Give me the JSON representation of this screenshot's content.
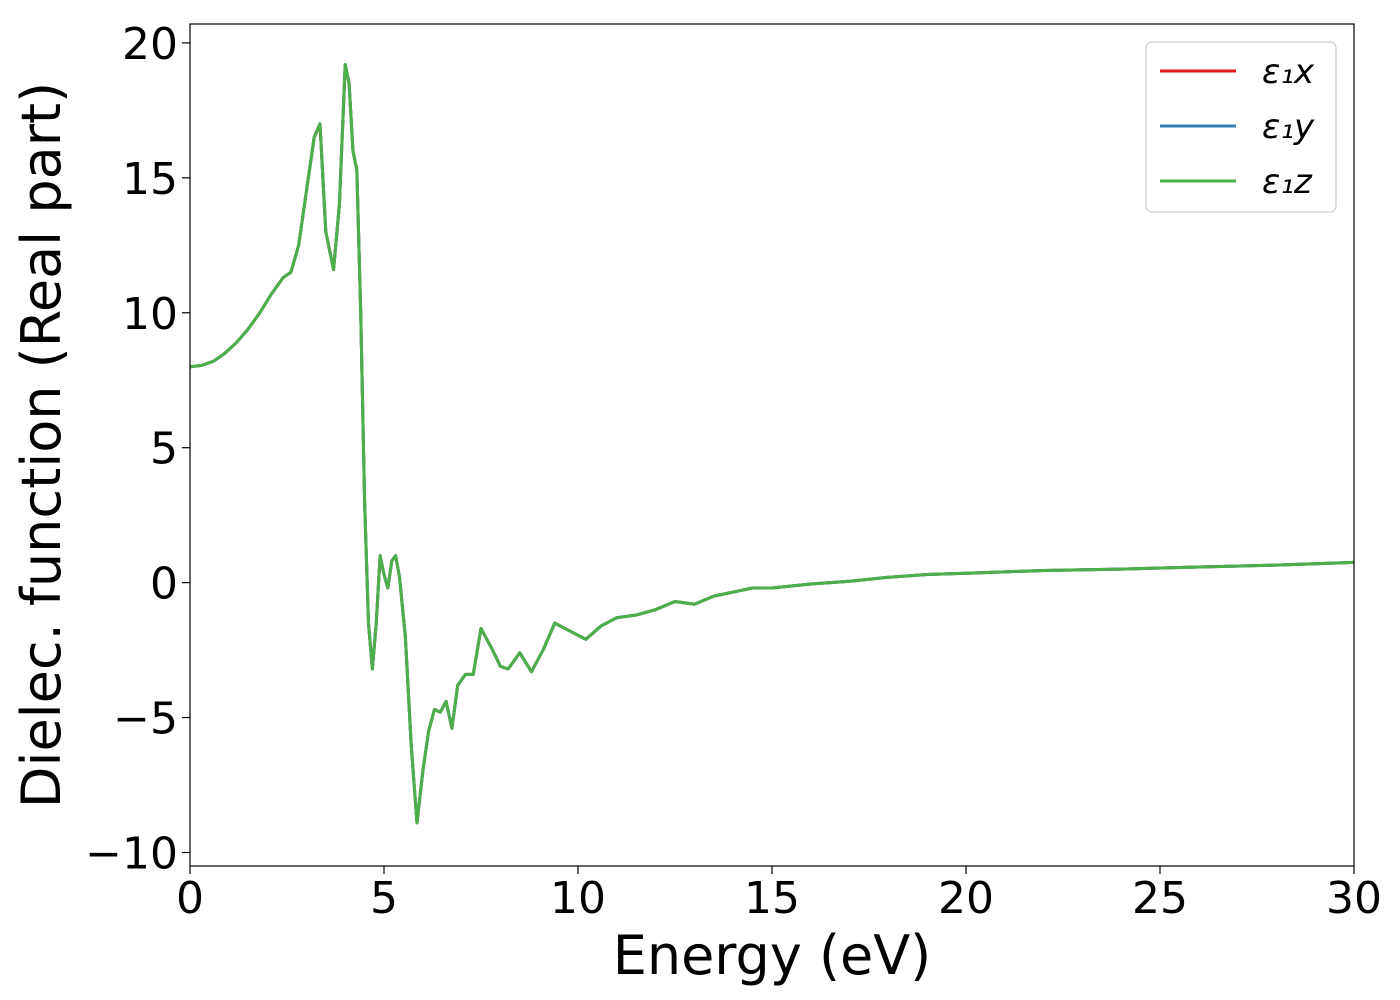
{
  "chart_data": {
    "type": "line",
    "xlabel": "Energy (eV)",
    "ylabel": "Dielec. function (Real part)",
    "xlim": [
      0,
      30
    ],
    "ylim": [
      -10.5,
      20.7
    ],
    "xticks": [
      0,
      5,
      10,
      15,
      20,
      25,
      30
    ],
    "xtick_labels": [
      "0",
      "5",
      "10",
      "15",
      "20",
      "25",
      "30"
    ],
    "yticks": [
      -10,
      -5,
      0,
      5,
      10,
      15,
      20
    ],
    "ytick_labels": [
      "−10",
      "−5",
      "0",
      "5",
      "10",
      "15",
      "20"
    ],
    "grid": false,
    "legend_position": "top-right",
    "x": [
      0,
      0.3,
      0.6,
      0.9,
      1.2,
      1.5,
      1.8,
      2.1,
      2.4,
      2.6,
      2.8,
      3.0,
      3.2,
      3.35,
      3.5,
      3.7,
      3.85,
      4.0,
      4.1,
      4.2,
      4.3,
      4.4,
      4.5,
      4.6,
      4.7,
      4.8,
      4.9,
      5.0,
      5.1,
      5.2,
      5.3,
      5.4,
      5.55,
      5.7,
      5.85,
      6.0,
      6.15,
      6.3,
      6.45,
      6.6,
      6.75,
      6.9,
      7.1,
      7.3,
      7.5,
      7.8,
      8.0,
      8.2,
      8.5,
      8.8,
      9.1,
      9.4,
      9.8,
      10.2,
      10.6,
      11.0,
      11.5,
      12.0,
      12.5,
      13.0,
      13.5,
      14.0,
      14.5,
      15.0,
      16.0,
      17.0,
      18.0,
      19.0,
      20.0,
      21.0,
      22.0,
      24.0,
      26.0,
      28.0,
      30.0
    ],
    "series": [
      {
        "name": "ε₁x",
        "color": "#e41a1c",
        "values": [
          8.0,
          8.05,
          8.2,
          8.5,
          8.9,
          9.4,
          10.0,
          10.7,
          11.3,
          11.5,
          12.5,
          14.5,
          16.5,
          17.0,
          13.0,
          11.6,
          14.0,
          19.2,
          18.5,
          16.0,
          15.3,
          10.0,
          3.0,
          -1.5,
          -3.2,
          -1.5,
          1.0,
          0.3,
          -0.2,
          0.8,
          1.0,
          0.2,
          -2.0,
          -6.0,
          -8.9,
          -7.0,
          -5.5,
          -4.7,
          -4.8,
          -4.4,
          -5.4,
          -3.8,
          -3.4,
          -3.4,
          -1.7,
          -2.5,
          -3.1,
          -3.2,
          -2.6,
          -3.3,
          -2.5,
          -1.5,
          -1.8,
          -2.1,
          -1.6,
          -1.3,
          -1.2,
          -1.0,
          -0.7,
          -0.8,
          -0.5,
          -0.35,
          -0.2,
          -0.2,
          -0.05,
          0.05,
          0.2,
          0.3,
          0.35,
          0.4,
          0.45,
          0.5,
          0.58,
          0.65,
          0.75
        ]
      },
      {
        "name": "ε₁y",
        "color": "#377eb8",
        "values": [
          8.0,
          8.05,
          8.2,
          8.5,
          8.9,
          9.4,
          10.0,
          10.7,
          11.3,
          11.5,
          12.5,
          14.5,
          16.5,
          17.0,
          13.0,
          11.6,
          14.0,
          19.2,
          18.5,
          16.0,
          15.3,
          10.0,
          3.0,
          -1.5,
          -3.2,
          -1.5,
          1.0,
          0.3,
          -0.2,
          0.8,
          1.0,
          0.2,
          -2.0,
          -6.0,
          -8.9,
          -7.0,
          -5.5,
          -4.7,
          -4.8,
          -4.4,
          -5.4,
          -3.8,
          -3.4,
          -3.4,
          -1.7,
          -2.5,
          -3.1,
          -3.2,
          -2.6,
          -3.3,
          -2.5,
          -1.5,
          -1.8,
          -2.1,
          -1.6,
          -1.3,
          -1.2,
          -1.0,
          -0.7,
          -0.8,
          -0.5,
          -0.35,
          -0.2,
          -0.2,
          -0.05,
          0.05,
          0.2,
          0.3,
          0.35,
          0.4,
          0.45,
          0.5,
          0.58,
          0.65,
          0.75
        ]
      },
      {
        "name": "ε₁z",
        "color": "#4daf4a",
        "values": [
          8.0,
          8.05,
          8.2,
          8.5,
          8.9,
          9.4,
          10.0,
          10.7,
          11.3,
          11.5,
          12.5,
          14.5,
          16.5,
          17.0,
          13.0,
          11.6,
          14.0,
          19.2,
          18.5,
          16.0,
          15.3,
          10.0,
          3.0,
          -1.5,
          -3.2,
          -1.5,
          1.0,
          0.3,
          -0.2,
          0.8,
          1.0,
          0.2,
          -2.0,
          -6.0,
          -8.9,
          -7.0,
          -5.5,
          -4.7,
          -4.8,
          -4.4,
          -5.4,
          -3.8,
          -3.4,
          -3.4,
          -1.7,
          -2.5,
          -3.1,
          -3.2,
          -2.6,
          -3.3,
          -2.5,
          -1.5,
          -1.8,
          -2.1,
          -1.6,
          -1.3,
          -1.2,
          -1.0,
          -0.7,
          -0.8,
          -0.5,
          -0.35,
          -0.2,
          -0.2,
          -0.05,
          0.05,
          0.2,
          0.3,
          0.35,
          0.4,
          0.45,
          0.5,
          0.58,
          0.65,
          0.75
        ]
      }
    ]
  }
}
